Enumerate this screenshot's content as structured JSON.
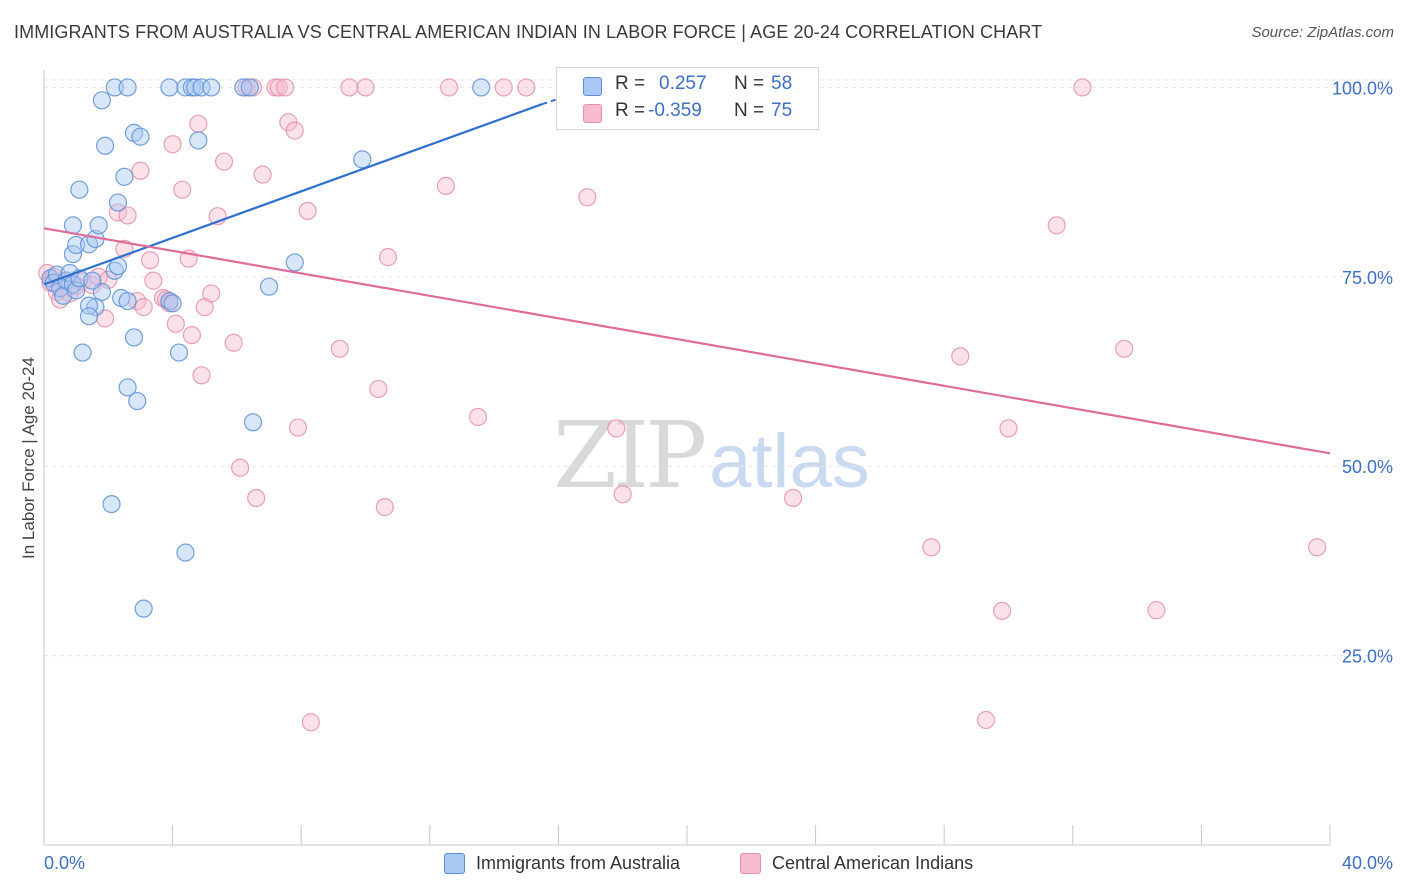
{
  "header": {
    "title": "IMMIGRANTS FROM AUSTRALIA VS CENTRAL AMERICAN INDIAN IN LABOR FORCE | AGE 20-24 CORRELATION CHART",
    "source": "Source: ZipAtlas.com"
  },
  "watermark": {
    "zip": "ZIP",
    "atlas": "atlas"
  },
  "colors": {
    "blue_fill": "#a9c8f3",
    "blue_stroke": "#5c8fd6",
    "blue_line": "#2f6fce",
    "pink_fill": "#f6bccd",
    "pink_stroke": "#e591ac",
    "pink_line": "#e06c98",
    "grid": "#e6e6e6",
    "axis_text": "#3d6fc4"
  },
  "legend_top": {
    "rows": [
      {
        "r_key": "R =",
        "r_value": "0.257",
        "n_key": "N =",
        "n_value": "58"
      },
      {
        "r_key": "R =",
        "r_value": "-0.359",
        "n_key": "N =",
        "n_value": "75"
      }
    ]
  },
  "legend_bottom": {
    "items": [
      "Immigrants from Australia",
      "Central American Indians"
    ]
  },
  "chart_data": {
    "type": "scatter",
    "title": "IMMIGRANTS FROM AUSTRALIA VS CENTRAL AMERICAN INDIAN IN LABOR FORCE | AGE 20-24 CORRELATION CHART",
    "xlabel": "",
    "ylabel": "In Labor Force | Age 20-24",
    "xlim": [
      0,
      40
    ],
    "ylim": [
      0,
      102.3
    ],
    "x_tick_labels": [
      "0.0%",
      "40.0%"
    ],
    "y_tick_labels": [
      "100.0%",
      "75.0%",
      "50.0%",
      "25.0%"
    ],
    "y_ticks": [
      100,
      75,
      50,
      25
    ],
    "x_minor_ticks": [
      4,
      8,
      12,
      16,
      20,
      24,
      28,
      32,
      36,
      40
    ],
    "grid": true,
    "series": [
      {
        "name": "Immigrants from Australia",
        "r": 0.257,
        "n": 58,
        "trend": {
          "x": [
            0,
            15.5
          ],
          "y": [
            74.0,
            97.8
          ]
        },
        "trend_dashed": {
          "x": [
            15.5,
            17.5
          ],
          "y": [
            97.8,
            100.6
          ]
        },
        "points": [
          [
            0.2,
            74.8
          ],
          [
            0.3,
            74.2
          ],
          [
            0.4,
            75.3
          ],
          [
            0.5,
            73.5
          ],
          [
            0.6,
            72.5
          ],
          [
            0.7,
            74.5
          ],
          [
            0.8,
            75.5
          ],
          [
            0.9,
            74.0
          ],
          [
            1.0,
            73.2
          ],
          [
            1.1,
            74.8
          ],
          [
            0.9,
            78.0
          ],
          [
            0.9,
            81.8
          ],
          [
            1.0,
            79.2
          ],
          [
            1.1,
            86.5
          ],
          [
            1.4,
            79.3
          ],
          [
            1.6,
            80.0
          ],
          [
            1.7,
            81.8
          ],
          [
            1.8,
            73.0
          ],
          [
            1.6,
            71.0
          ],
          [
            1.4,
            71.2
          ],
          [
            1.4,
            69.8
          ],
          [
            1.2,
            65.0
          ],
          [
            1.8,
            98.3
          ],
          [
            1.9,
            92.3
          ],
          [
            2.2,
            75.8
          ],
          [
            2.2,
            100.0
          ],
          [
            2.3,
            84.8
          ],
          [
            2.3,
            76.4
          ],
          [
            2.4,
            72.2
          ],
          [
            2.5,
            88.2
          ],
          [
            2.6,
            60.4
          ],
          [
            2.6,
            100.0
          ],
          [
            2.6,
            71.8
          ],
          [
            2.8,
            94.0
          ],
          [
            2.8,
            67.0
          ],
          [
            2.9,
            58.6
          ],
          [
            3.0,
            93.5
          ],
          [
            3.1,
            31.2
          ],
          [
            3.9,
            100.0
          ],
          [
            3.9,
            71.8
          ],
          [
            4.0,
            71.5
          ],
          [
            4.2,
            65.0
          ],
          [
            4.4,
            100.0
          ],
          [
            4.4,
            38.6
          ],
          [
            4.6,
            100.0
          ],
          [
            4.7,
            100.0
          ],
          [
            4.8,
            93.0
          ],
          [
            4.9,
            100.0
          ],
          [
            5.2,
            100.0
          ],
          [
            6.2,
            100.0
          ],
          [
            6.4,
            100.0
          ],
          [
            6.5,
            55.8
          ],
          [
            7.0,
            73.7
          ],
          [
            7.8,
            76.9
          ],
          [
            9.9,
            90.5
          ],
          [
            13.6,
            100.0
          ],
          [
            2.1,
            45.0
          ],
          [
            1.5,
            74.5
          ]
        ]
      },
      {
        "name": "Central American Indians",
        "r": -0.359,
        "n": 75,
        "trend": {
          "x": [
            0,
            40
          ],
          "y": [
            81.4,
            51.7
          ]
        },
        "points": [
          [
            0.1,
            75.5
          ],
          [
            0.2,
            74.2
          ],
          [
            0.3,
            75.0
          ],
          [
            0.4,
            73.0
          ],
          [
            0.5,
            72.0
          ],
          [
            0.6,
            74.5
          ],
          [
            0.8,
            72.8
          ],
          [
            1.0,
            73.8
          ],
          [
            1.2,
            74.4
          ],
          [
            1.5,
            73.9
          ],
          [
            1.7,
            75.0
          ],
          [
            1.9,
            69.5
          ],
          [
            2.0,
            74.6
          ],
          [
            2.3,
            83.5
          ],
          [
            2.5,
            78.7
          ],
          [
            2.6,
            83.1
          ],
          [
            2.9,
            71.8
          ],
          [
            3.0,
            89.0
          ],
          [
            3.1,
            71.0
          ],
          [
            3.3,
            77.2
          ],
          [
            3.4,
            74.5
          ],
          [
            3.7,
            72.2
          ],
          [
            3.8,
            72.0
          ],
          [
            3.9,
            71.5
          ],
          [
            4.0,
            92.5
          ],
          [
            4.1,
            68.8
          ],
          [
            4.3,
            86.5
          ],
          [
            4.5,
            77.4
          ],
          [
            4.6,
            67.3
          ],
          [
            4.8,
            95.2
          ],
          [
            4.9,
            62.0
          ],
          [
            5.0,
            71.0
          ],
          [
            5.2,
            72.8
          ],
          [
            5.4,
            83.0
          ],
          [
            5.6,
            90.2
          ],
          [
            5.9,
            66.3
          ],
          [
            6.1,
            49.8
          ],
          [
            6.3,
            100.0
          ],
          [
            6.5,
            100.0
          ],
          [
            6.6,
            45.8
          ],
          [
            6.8,
            88.5
          ],
          [
            7.2,
            100.0
          ],
          [
            7.3,
            100.0
          ],
          [
            7.5,
            100.0
          ],
          [
            7.6,
            95.4
          ],
          [
            7.8,
            94.3
          ],
          [
            7.9,
            55.1
          ],
          [
            8.2,
            83.7
          ],
          [
            8.3,
            16.2
          ],
          [
            9.2,
            65.5
          ],
          [
            9.5,
            100.0
          ],
          [
            10.0,
            100.0
          ],
          [
            10.4,
            60.2
          ],
          [
            10.6,
            44.6
          ],
          [
            10.7,
            77.6
          ],
          [
            12.5,
            87.0
          ],
          [
            12.6,
            100.0
          ],
          [
            13.5,
            56.5
          ],
          [
            14.3,
            100.0
          ],
          [
            15.0,
            100.0
          ],
          [
            16.9,
            85.5
          ],
          [
            17.8,
            55.0
          ],
          [
            18.0,
            46.3
          ],
          [
            18.8,
            100.0
          ],
          [
            23.3,
            45.8
          ],
          [
            27.6,
            39.3
          ],
          [
            28.5,
            64.5
          ],
          [
            29.3,
            16.5
          ],
          [
            29.8,
            30.9
          ],
          [
            30.0,
            55.0
          ],
          [
            31.5,
            81.8
          ],
          [
            32.3,
            100.0
          ],
          [
            33.6,
            65.5
          ],
          [
            34.6,
            31.0
          ],
          [
            39.6,
            39.3
          ]
        ]
      }
    ]
  }
}
